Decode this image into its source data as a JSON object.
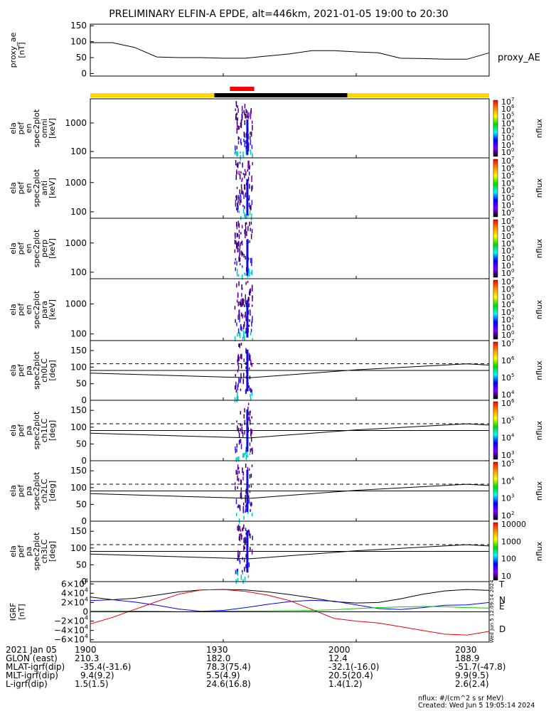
{
  "title": "PRELIMINARY ELFIN-A EPDE, alt=446km, 2021-01-05 19:00 to 20:30",
  "chart_data": [
    {
      "type": "line",
      "panel": "proxy_ae",
      "ylabel": [
        "proxy_ae",
        "[nT]"
      ],
      "legend": "proxy_AE",
      "ylim": [
        -8,
        155
      ],
      "yticks": [
        "150",
        "100",
        "50",
        "0"
      ],
      "series": [
        {
          "x": [
            0,
            5,
            10,
            15,
            20,
            25,
            30,
            35,
            40,
            45,
            50,
            55,
            60,
            65,
            70,
            75,
            80,
            85,
            90
          ],
          "y": [
            97,
            97,
            82,
            52,
            50,
            50,
            48,
            48,
            55,
            62,
            72,
            72,
            68,
            65,
            48,
            47,
            45,
            45,
            65
          ]
        }
      ]
    },
    {
      "type": "heatmap",
      "panel": "en_spec2plot_omni",
      "ylabel": [
        "ela",
        "pef",
        "en",
        "spec2plot",
        "omni",
        "[keV]"
      ],
      "yscale": "log",
      "ylim": [
        60,
        7000
      ],
      "yticks": [
        "1000",
        "100"
      ],
      "colorbar": {
        "label": "nflux",
        "ticks": [
          "10",
          "10",
          "10",
          "10",
          "10",
          "10",
          "10",
          "10"
        ],
        "exponents": [
          "7",
          "6",
          "5",
          "4",
          "3",
          "2",
          "1",
          "0"
        ]
      }
    },
    {
      "type": "heatmap",
      "panel": "en_spec2plot_anti",
      "ylabel": [
        "ela",
        "pef",
        "en",
        "spec2plot",
        "anti",
        "[keV]"
      ],
      "yscale": "log",
      "ylim": [
        60,
        7000
      ],
      "yticks": [
        "1000",
        "100"
      ],
      "colorbar": {
        "label": "nflux",
        "ticks": [
          "10",
          "10",
          "10",
          "10",
          "10",
          "10",
          "10",
          "10"
        ],
        "exponents": [
          "7",
          "6",
          "5",
          "4",
          "3",
          "2",
          "1",
          "0"
        ]
      }
    },
    {
      "type": "heatmap",
      "panel": "en_spec2plot_perp",
      "ylabel": [
        "ela",
        "pef",
        "en",
        "spec2plot",
        "perp",
        "[keV]"
      ],
      "yscale": "log",
      "ylim": [
        60,
        7000
      ],
      "yticks": [
        "1000",
        "100"
      ],
      "colorbar": {
        "label": "nflux",
        "ticks": [
          "10",
          "10",
          "10",
          "10",
          "10",
          "10",
          "10",
          "10"
        ],
        "exponents": [
          "7",
          "6",
          "5",
          "4",
          "3",
          "2",
          "1",
          "0"
        ]
      }
    },
    {
      "type": "heatmap",
      "panel": "en_spec2plot_para",
      "ylabel": [
        "ela",
        "pef",
        "en",
        "spec2plot",
        "para",
        "[keV]"
      ],
      "yscale": "log",
      "ylim": [
        60,
        7000
      ],
      "yticks": [
        "1000",
        "100"
      ],
      "colorbar": {
        "label": "nflux",
        "ticks": [
          "10",
          "10",
          "10",
          "10",
          "10",
          "10",
          "10",
          "10"
        ],
        "exponents": [
          "7",
          "6",
          "5",
          "4",
          "3",
          "2",
          "1",
          "0"
        ]
      }
    },
    {
      "type": "heatmap",
      "panel": "pa_spec2plot_ch0LC",
      "ylabel": [
        "ela",
        "pef",
        "pa",
        "spec2plot",
        "ch0LC",
        "[deg]"
      ],
      "ylim": [
        0,
        180
      ],
      "yticks": [
        "150",
        "100",
        "50",
        "0"
      ],
      "colorbar": {
        "label": "nflux",
        "ticks": [
          "10",
          "10",
          "10",
          "10"
        ],
        "exponents": [
          "7",
          "6",
          "5",
          "4"
        ]
      }
    },
    {
      "type": "heatmap",
      "panel": "pa_spec2plot_ch1LC",
      "ylabel": [
        "ela",
        "pef",
        "pa",
        "spec2plot",
        "ch1LC",
        "[deg]"
      ],
      "ylim": [
        0,
        180
      ],
      "yticks": [
        "150",
        "100",
        "50",
        "0"
      ],
      "colorbar": {
        "label": "nflux",
        "ticks": [
          "10",
          "10",
          "10",
          "10"
        ],
        "exponents": [
          "6",
          "5",
          "4",
          "3"
        ]
      }
    },
    {
      "type": "heatmap",
      "panel": "pa_spec2plot_ch2LC",
      "ylabel": [
        "ela",
        "pef",
        "pa",
        "spec2plot",
        "ch2LC",
        "[deg]"
      ],
      "ylim": [
        0,
        180
      ],
      "yticks": [
        "150",
        "100",
        "50",
        "0"
      ],
      "colorbar": {
        "label": "nflux",
        "ticks": [
          "10",
          "10",
          "10",
          "10"
        ],
        "exponents": [
          "5",
          "4",
          "3",
          "2"
        ]
      }
    },
    {
      "type": "heatmap",
      "panel": "pa_spec2plot_ch3LC",
      "ylabel": [
        "ela",
        "pef",
        "pa",
        "spec2plot",
        "ch3LC",
        "[deg]"
      ],
      "ylim": [
        0,
        180
      ],
      "yticks": [
        "150",
        "100",
        "50",
        "0"
      ],
      "colorbar": {
        "label": "nflux",
        "ticks": [
          "10000",
          "1000",
          "100",
          "10"
        ]
      }
    },
    {
      "type": "line",
      "panel": "igrf",
      "ylabel": [
        "IGRF",
        "[nT]"
      ],
      "ylim": [
        -65000,
        65000
      ],
      "yticks": [
        {
          "m": "6",
          "e": "4",
          "sign": ""
        },
        {
          "m": "4",
          "e": "4",
          "sign": ""
        },
        {
          "m": "2",
          "e": "4",
          "sign": ""
        },
        {
          "m": "0",
          "e": "",
          "sign": ""
        },
        {
          "m": "2",
          "e": "4",
          "sign": "−"
        },
        {
          "m": "4",
          "e": "4",
          "sign": "−"
        },
        {
          "m": "6",
          "e": "4",
          "sign": "−"
        }
      ],
      "series": [
        {
          "name": "T",
          "color": "#000000",
          "x": [
            0,
            5,
            10,
            15,
            20,
            25,
            30,
            35,
            40,
            45,
            50,
            55,
            60,
            65,
            70,
            75,
            80,
            85,
            90
          ],
          "y": [
            32000,
            26000,
            29000,
            36000,
            43000,
            47000,
            48000,
            47000,
            43000,
            37000,
            30000,
            22000,
            19000,
            20000,
            28000,
            38000,
            45000,
            48000,
            46000
          ]
        },
        {
          "name": "N",
          "color": "#0000ff",
          "x": [
            0,
            5,
            10,
            15,
            20,
            25,
            30,
            35,
            40,
            45,
            50,
            55,
            60,
            65,
            70,
            75,
            80,
            85,
            90
          ],
          "y": [
            24000,
            26000,
            21000,
            14000,
            6000,
            1000,
            3000,
            9000,
            16000,
            22000,
            25000,
            23000,
            15000,
            7000,
            5000,
            9000,
            14000,
            15000,
            20000
          ]
        },
        {
          "name": "E",
          "color": "#00cc00",
          "x": [
            0,
            5,
            10,
            15,
            20,
            25,
            30,
            35,
            40,
            45,
            50,
            55,
            60,
            65,
            70,
            75,
            80,
            85,
            90
          ],
          "y": [
            2000,
            2000,
            1500,
            1000,
            500,
            500,
            1500,
            2000,
            2000,
            2500,
            3000,
            4500,
            7000,
            9000,
            10500,
            11500,
            11000,
            9000,
            8000
          ]
        },
        {
          "name": "D",
          "color": "#ee0000",
          "x": [
            0,
            5,
            10,
            15,
            20,
            25,
            30,
            35,
            40,
            45,
            50,
            55,
            60,
            65,
            70,
            75,
            80,
            85,
            90
          ],
          "y": [
            -26000,
            -12000,
            5000,
            22000,
            38000,
            47000,
            48000,
            44000,
            36000,
            24000,
            5000,
            -14000,
            -20000,
            -24000,
            -32000,
            -40000,
            -48000,
            -50000,
            -42000
          ]
        }
      ]
    }
  ],
  "xaxis": {
    "ticks": [
      {
        "x": 0,
        "label": "1900"
      },
      {
        "x": 30,
        "label": "1930"
      },
      {
        "x": 60,
        "label": "2000"
      },
      {
        "x": 90,
        "label": "2030"
      }
    ]
  },
  "status_bar": {
    "segments": [
      {
        "from": 0,
        "to": 28,
        "color": "#ffd700"
      },
      {
        "from": 28,
        "to": 58,
        "color": "#000000"
      },
      {
        "from": 58,
        "to": 90,
        "color": "#ffd700"
      }
    ],
    "marker": {
      "from": 31.5,
      "to": 37,
      "color": "#ff0000"
    }
  },
  "footer": {
    "rows": [
      {
        "label": "2021 Jan 05",
        "values": [
          "1900",
          "1930",
          "2000",
          "2030"
        ]
      },
      {
        "label": "GLON (east)",
        "values": [
          "210.3",
          "182.0",
          "12.4",
          "188.9"
        ]
      },
      {
        "label": "MLAT-igrf(dip)",
        "values": [
          "-35.4(-31.6)",
          "78.3(75.4)",
          "-32.1(-16.0)",
          "-51.7(-47.8)"
        ]
      },
      {
        "label": "MLT-igrf(dip)",
        "values": [
          "9.4(9.2)",
          "5.5(4.9)",
          "20.5(20.4)",
          "9.9(9.5)"
        ]
      },
      {
        "label": "L-igrf(dip)",
        "values": [
          "1.5(1.5)",
          "24.6(16.8)",
          "1.4(1.2)",
          "2.6(2.4)"
        ]
      }
    ],
    "note1": "nflux: #/(cm^2 s sr MeV)",
    "note2": "Created: Wed Jun  5 19:05:14 2024",
    "vertical_stamp": "Wed Jun  5 12:09:14 2024"
  }
}
